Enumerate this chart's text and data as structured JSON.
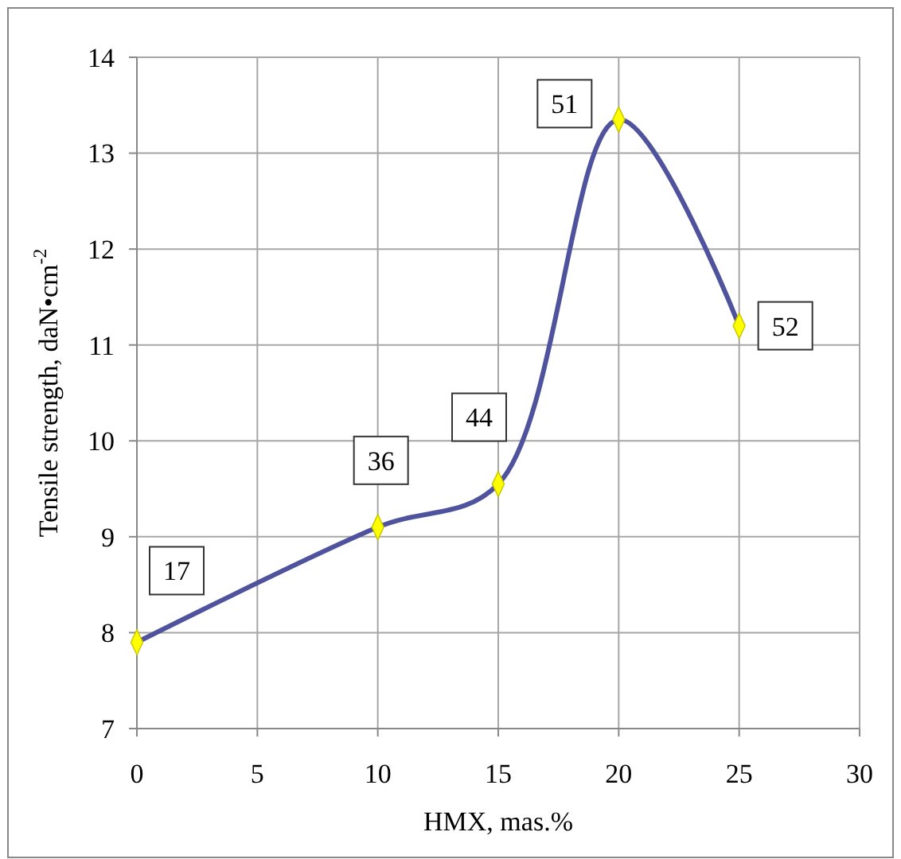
{
  "chart_data": {
    "type": "line",
    "xlabel": "HMX, mas.%",
    "ylabel": "Tensile strength, daN•cm$^{-2}$",
    "x": [
      0,
      10,
      15,
      20,
      25
    ],
    "series": [
      {
        "color": "#4f529c",
        "values": [
          7.9,
          9.1,
          9.55,
          13.35,
          11.2
        ]
      }
    ],
    "xlim": [
      0,
      30
    ],
    "xticks": [
      0,
      5,
      10,
      15,
      20,
      25,
      30
    ],
    "ylim": [
      7,
      14
    ],
    "yticks": [
      7,
      8,
      9,
      10,
      11,
      12,
      13,
      14
    ],
    "grid": true,
    "marker": "diamond",
    "line_style": "solid",
    "annotations": [
      {
        "text": "17",
        "x": 0,
        "y": 7.9
      },
      {
        "text": "36",
        "x": 10,
        "y": 9.1
      },
      {
        "text": "44",
        "x": 15,
        "y": 9.55
      },
      {
        "text": "51",
        "x": 20,
        "y": 13.35
      },
      {
        "text": "52",
        "x": 25,
        "y": 11.2
      }
    ]
  }
}
